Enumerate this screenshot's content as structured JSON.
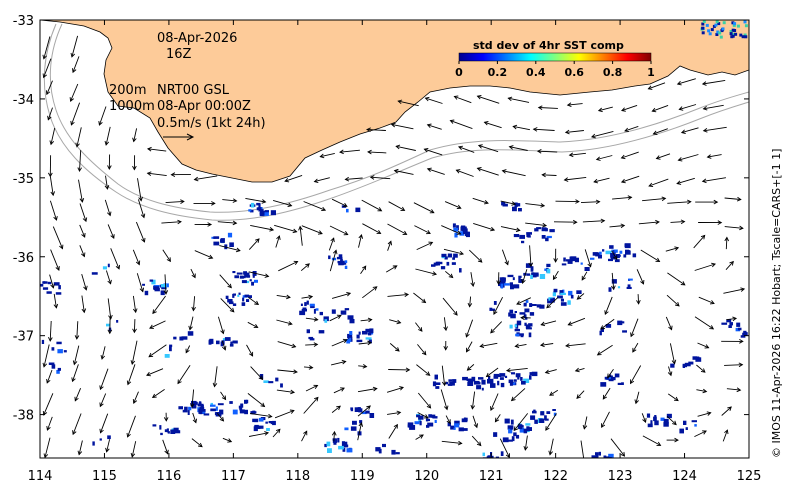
{
  "annotations": {
    "date": "08-Apr-2026",
    "hour": "16Z",
    "depth_200": "200m",
    "depth_1000": "1000m",
    "product": "NRT00 GSL",
    "product_time": "08-Apr 00:00Z",
    "vector_scale": "0.5m/s (1kt 24h)"
  },
  "colorbar": {
    "title": "std dev of 4hr SST comp",
    "ticks": [
      "0",
      "0.2",
      "0.4",
      "0.6",
      "0.8",
      "1"
    ]
  },
  "credit": "© IMOS 11-Apr-2026 16:22 Hobart; Tscale=CARS+[-1 1]",
  "axes": {
    "lon_ticks": [
      "114",
      "115",
      "116",
      "117",
      "118",
      "119",
      "120",
      "121",
      "122",
      "123",
      "124",
      "125"
    ],
    "lat_ticks": [
      "-33",
      "-34",
      "-35",
      "-36",
      "-37",
      "-38"
    ],
    "lon_range": [
      114,
      125
    ],
    "lat_range": [
      -38.55,
      -33
    ]
  },
  "colors": {
    "land": "#fdcb99",
    "coast": "#000000",
    "isobath": "#a8a8a8",
    "sst_low": "#00149e",
    "vector": "#000000"
  }
}
